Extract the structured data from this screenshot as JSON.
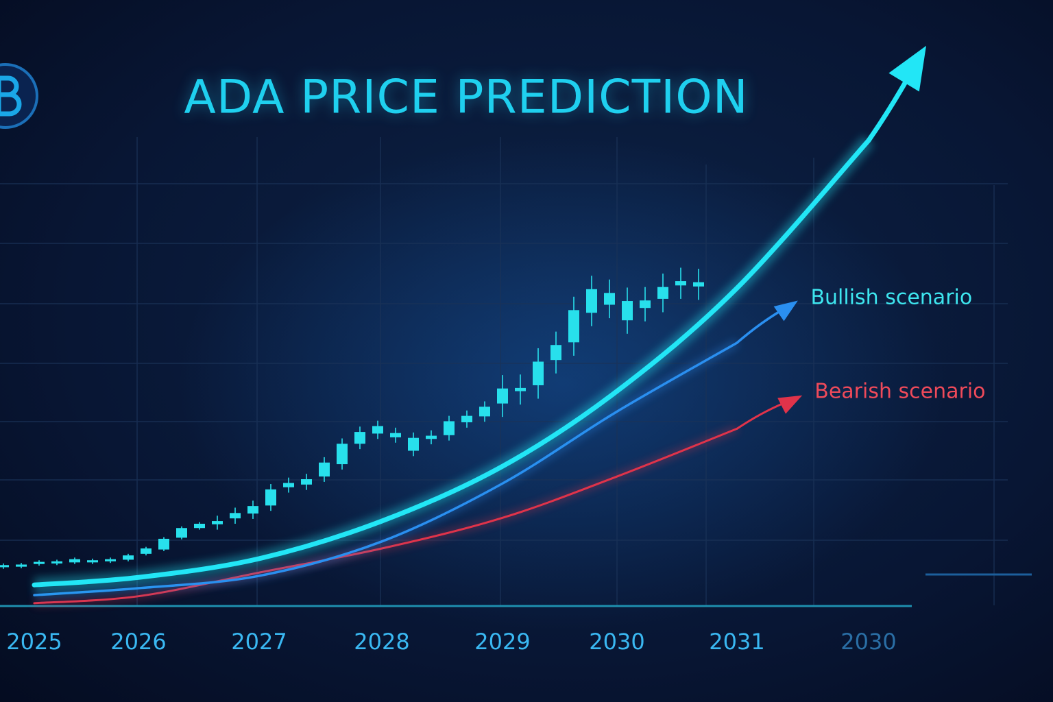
{
  "chart_data": {
    "type": "candlestick",
    "title": "ADA PRICE PREDICTION",
    "categories": [
      "2025",
      "2026",
      "2027",
      "2028",
      "2029",
      "2030",
      "2031",
      "2030"
    ],
    "ylim": [
      0,
      100
    ],
    "grid": true,
    "candles": {
      "color": "#28e0ec",
      "open": [
        7.1,
        7.2,
        7.7,
        7.8,
        8.0,
        8.0,
        8.2,
        8.5,
        9.6,
        10.4,
        12.6,
        14.4,
        15.1,
        16.2,
        17.1,
        18.6,
        22.0,
        22.5,
        24.0,
        26.3,
        30.1,
        32.0,
        32.1,
        31.2,
        31.0,
        31.7,
        34.1,
        35.2,
        37.6,
        39.9,
        41.0,
        45.7,
        49.0,
        54.5,
        58.2,
        56.7,
        55.4,
        57.1,
        59.6,
        59.4
      ],
      "high": [
        7.8,
        7.9,
        8.4,
        8.5,
        8.9,
        8.7,
        8.9,
        9.6,
        10.9,
        12.7,
        14.7,
        15.5,
        16.7,
        18.2,
        19.5,
        22.6,
        23.8,
        24.5,
        27.6,
        31.1,
        33.3,
        34.4,
        33.1,
        32.2,
        32.6,
        35.3,
        36.3,
        38.0,
        42.9,
        43.0,
        47.9,
        51.0,
        57.5,
        61.4,
        60.7,
        59.2,
        59.3,
        61.8,
        62.9,
        62.7
      ],
      "low": [
        6.8,
        6.9,
        7.4,
        7.5,
        7.7,
        7.7,
        7.9,
        8.2,
        9.3,
        10.1,
        12.3,
        14.1,
        14.1,
        15.2,
        16.1,
        17.6,
        21.0,
        21.5,
        23.0,
        25.3,
        29.1,
        31.0,
        30.3,
        27.8,
        30.0,
        30.7,
        33.1,
        34.2,
        35.1,
        37.4,
        38.5,
        43.2,
        46.5,
        52.0,
        53.5,
        50.6,
        52.9,
        54.6,
        57.1,
        56.9
      ],
      "close": [
        7.5,
        7.6,
        8.1,
        8.2,
        8.6,
        8.4,
        8.6,
        9.3,
        10.6,
        12.4,
        14.4,
        15.2,
        15.7,
        17.2,
        18.5,
        21.6,
        22.8,
        23.5,
        26.6,
        30.1,
        32.3,
        33.4,
        31.3,
        28.8,
        31.6,
        34.3,
        35.3,
        37.0,
        40.4,
        40.5,
        45.4,
        48.5,
        55.0,
        58.9,
        56.0,
        53.1,
        56.8,
        59.3,
        60.4,
        60.2
      ]
    },
    "series": [
      {
        "color": "#22e6f6",
        "values": [
          3.8,
          5.2,
          8.7,
          15.7,
          25.9,
          39.9,
          59.1,
          86.6
        ]
      },
      {
        "name": "Bullish scenario",
        "color": "#2a8ff0",
        "label_color": "#3ee6ef",
        "values": [
          1.9,
          3.2,
          5.5,
          11.9,
          22.7,
          36.1,
          48.9,
          null
        ]
      },
      {
        "name": "Bearish scenario",
        "color": "#e0334a",
        "label_color": "#ef4a5a",
        "values": [
          0.4,
          1.7,
          6.1,
          10.6,
          16.3,
          24.0,
          32.9,
          null
        ]
      }
    ]
  }
}
